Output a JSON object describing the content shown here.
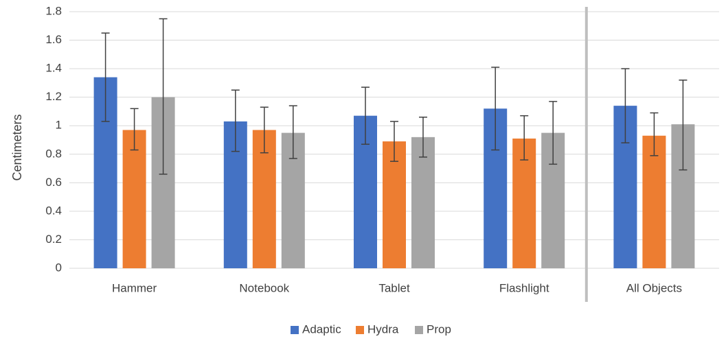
{
  "chart_data": {
    "type": "bar",
    "title": "",
    "xlabel": "",
    "ylabel": "Centimeters",
    "ylim": [
      0,
      1.8
    ],
    "yticks": [
      0,
      0.2,
      0.4,
      0.6,
      0.8,
      1,
      1.2,
      1.4,
      1.6,
      1.8
    ],
    "ytick_labels": [
      "0",
      "0.2",
      "0.4",
      "0.6",
      "0.8",
      "1",
      "1.2",
      "1.4",
      "1.6",
      "1.8"
    ],
    "categories": [
      "Hammer",
      "Notebook",
      "Tablet",
      "Flashlight",
      "All Objects"
    ],
    "separator_before_category": 4,
    "grid": true,
    "legend_position": "bottom",
    "series": [
      {
        "name": "Adaptic",
        "color": "#4472C4",
        "values": [
          1.34,
          1.03,
          1.07,
          1.12,
          1.14
        ],
        "error_low": [
          1.03,
          0.82,
          0.87,
          0.83,
          0.88
        ],
        "error_high": [
          1.65,
          1.25,
          1.27,
          1.41,
          1.4
        ]
      },
      {
        "name": "Hydra",
        "color": "#ED7D31",
        "values": [
          0.97,
          0.97,
          0.89,
          0.91,
          0.93
        ],
        "error_low": [
          0.83,
          0.81,
          0.75,
          0.76,
          0.79
        ],
        "error_high": [
          1.12,
          1.13,
          1.03,
          1.07,
          1.09
        ]
      },
      {
        "name": "Prop",
        "color": "#A5A5A5",
        "values": [
          1.2,
          0.95,
          0.92,
          0.95,
          1.01
        ],
        "error_low": [
          0.66,
          0.77,
          0.78,
          0.73,
          0.69
        ],
        "error_high": [
          1.75,
          1.14,
          1.06,
          1.17,
          1.32
        ]
      }
    ]
  },
  "colors": {
    "grid": "#D9D9D9",
    "separator": "#BFBFBF",
    "error_bar": "#404040",
    "text": "#404040"
  }
}
